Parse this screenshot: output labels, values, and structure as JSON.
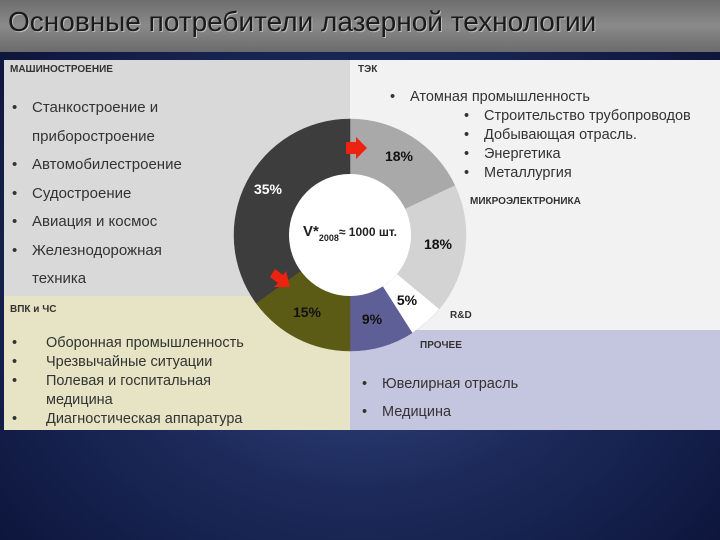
{
  "title": "Основные потребители лазерной технологии",
  "panels": {
    "mash": {
      "heading": "МАШИНОСТРОЕНИЕ",
      "items": [
        "Станкостроение и",
        "приборостроение",
        "Автомобилестроение",
        "Судостроение",
        "Авиация и космос",
        "Железнодорожная",
        "техника"
      ]
    },
    "tek": {
      "heading": "ТЭК",
      "items": [
        "Атомная промышленность",
        "Строительство трубопроводов",
        "Добывающая отрасль.",
        "Энергетика",
        "Металлургия"
      ]
    },
    "micro": {
      "heading": "МИКРОЭЛЕКТРОНИКА"
    },
    "vpk": {
      "heading": "ВПК и ЧС",
      "items": [
        "Оборонная промышленность",
        "Чрезвычайные ситуации",
        "Полевая и госпитальная",
        "медицина",
        "Диагностическая аппаратура"
      ]
    },
    "rd": {
      "heading": "R&D"
    },
    "other": {
      "heading": "ПРОЧЕЕ",
      "items": [
        "Ювелирная отрасль",
        "Медицина"
      ]
    }
  },
  "bullet": "•",
  "center": {
    "v": "V*",
    "sub": "2008",
    "rest": "≈ 1000 шт."
  },
  "chart_data": {
    "type": "pie",
    "slices": [
      {
        "label": "18%",
        "value": 18,
        "color": "#a9a9a9"
      },
      {
        "label": "18%",
        "value": 18,
        "color": "#d3d3d3"
      },
      {
        "label": "5%",
        "value": 5,
        "color": "#ffffff"
      },
      {
        "label": "9%",
        "value": 9,
        "color": "#5f5f97"
      },
      {
        "label": "15%",
        "value": 15,
        "color": "#5c5b16"
      },
      {
        "label": "35%",
        "value": 35,
        "color": "#3d3d3d"
      }
    ],
    "accent": "#ee2211"
  }
}
